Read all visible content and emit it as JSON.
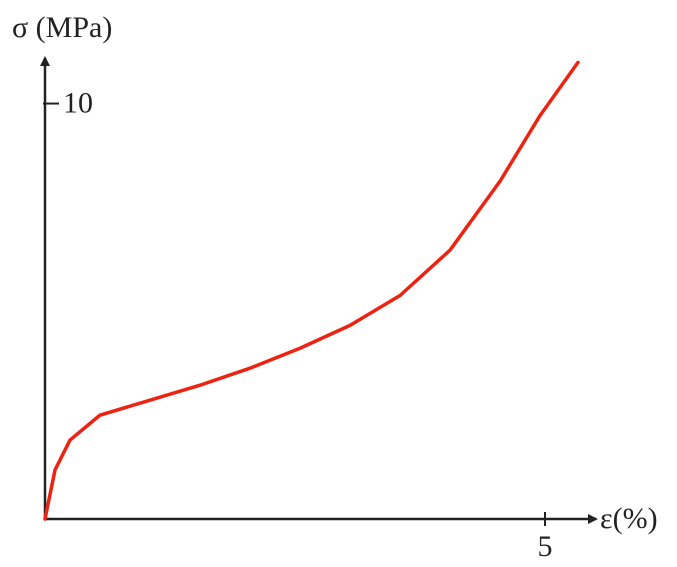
{
  "chart_data": {
    "type": "line",
    "y_label": "σ (MPa)",
    "x_label": "ε(%)",
    "x": [
      0,
      0.1,
      0.25,
      0.55,
      1.05,
      1.55,
      2.05,
      2.55,
      3.05,
      3.55,
      4.05,
      4.55,
      4.95,
      5.33
    ],
    "series": [
      {
        "color": "#ee2211",
        "values": [
          0,
          1.18,
          1.9,
          2.5,
          2.86,
          3.22,
          3.63,
          4.11,
          4.66,
          5.38,
          6.47,
          8.13,
          9.71,
          10.99
        ]
      }
    ],
    "xlim": [
      0,
      5.45
    ],
    "ylim": [
      0,
      11
    ],
    "xticks": [
      5
    ],
    "yticks": [
      10
    ]
  }
}
